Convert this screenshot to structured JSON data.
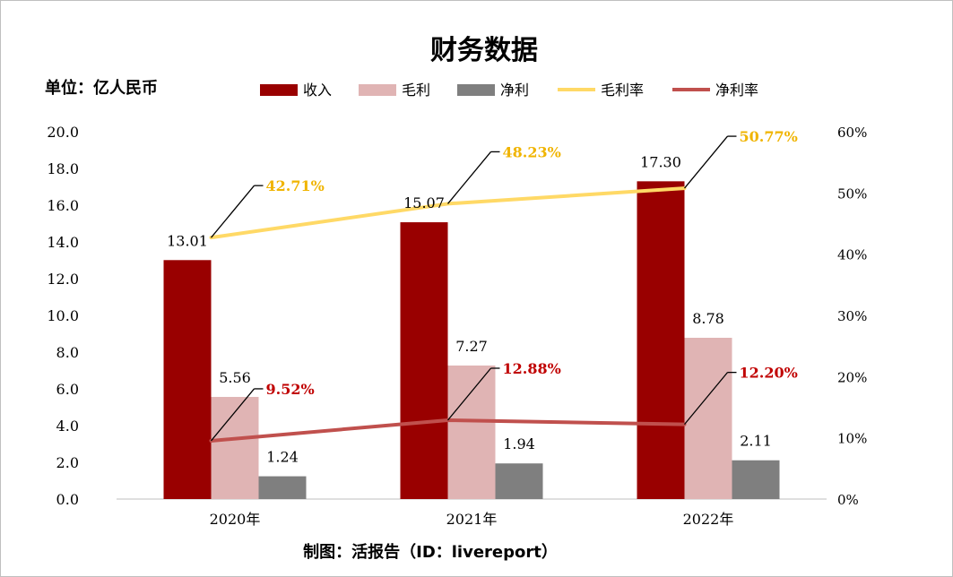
{
  "chart_data": {
    "type": "bar",
    "title": "财务数据",
    "unit_label": "单位：亿人民币",
    "source": "制图：活报告（ID：livereport）",
    "categories": [
      "2020年",
      "2021年",
      "2022年"
    ],
    "series": [
      {
        "name": "收入",
        "kind": "bar",
        "axis": "left",
        "color": "#990000",
        "values": [
          13.01,
          15.07,
          17.3
        ],
        "labels": [
          "13.01",
          "15.07",
          "17.30"
        ]
      },
      {
        "name": "毛利",
        "kind": "bar",
        "axis": "left",
        "color": "#e0b4b4",
        "values": [
          5.56,
          7.27,
          8.78
        ],
        "labels": [
          "5.56",
          "7.27",
          "8.78"
        ]
      },
      {
        "name": "净利",
        "kind": "bar",
        "axis": "left",
        "color": "#7f7f7f",
        "values": [
          1.24,
          1.94,
          2.11
        ],
        "labels": [
          "1.24",
          "1.94",
          "2.11"
        ]
      },
      {
        "name": "毛利率",
        "kind": "line",
        "axis": "right",
        "color": "#ffd966",
        "label_color": "#f0b400",
        "values": [
          42.71,
          48.23,
          50.77
        ],
        "labels": [
          "42.71%",
          "48.23%",
          "50.77%"
        ]
      },
      {
        "name": "净利率",
        "kind": "line",
        "axis": "right",
        "color": "#c0504d",
        "label_color": "#c00000",
        "values": [
          9.52,
          12.88,
          12.2
        ],
        "labels": [
          "9.52%",
          "12.88%",
          "12.20%"
        ]
      }
    ],
    "y_left": {
      "min": 0,
      "max": 20,
      "ticks": [
        "0.0",
        "2.0",
        "4.0",
        "6.0",
        "8.0",
        "10.0",
        "12.0",
        "14.0",
        "16.0",
        "18.0",
        "20.0"
      ]
    },
    "y_right": {
      "min": 0,
      "max": 60,
      "ticks": [
        "0%",
        "10%",
        "20%",
        "30%",
        "40%",
        "50%",
        "60%"
      ]
    },
    "grid": false,
    "legend_position": "top"
  }
}
